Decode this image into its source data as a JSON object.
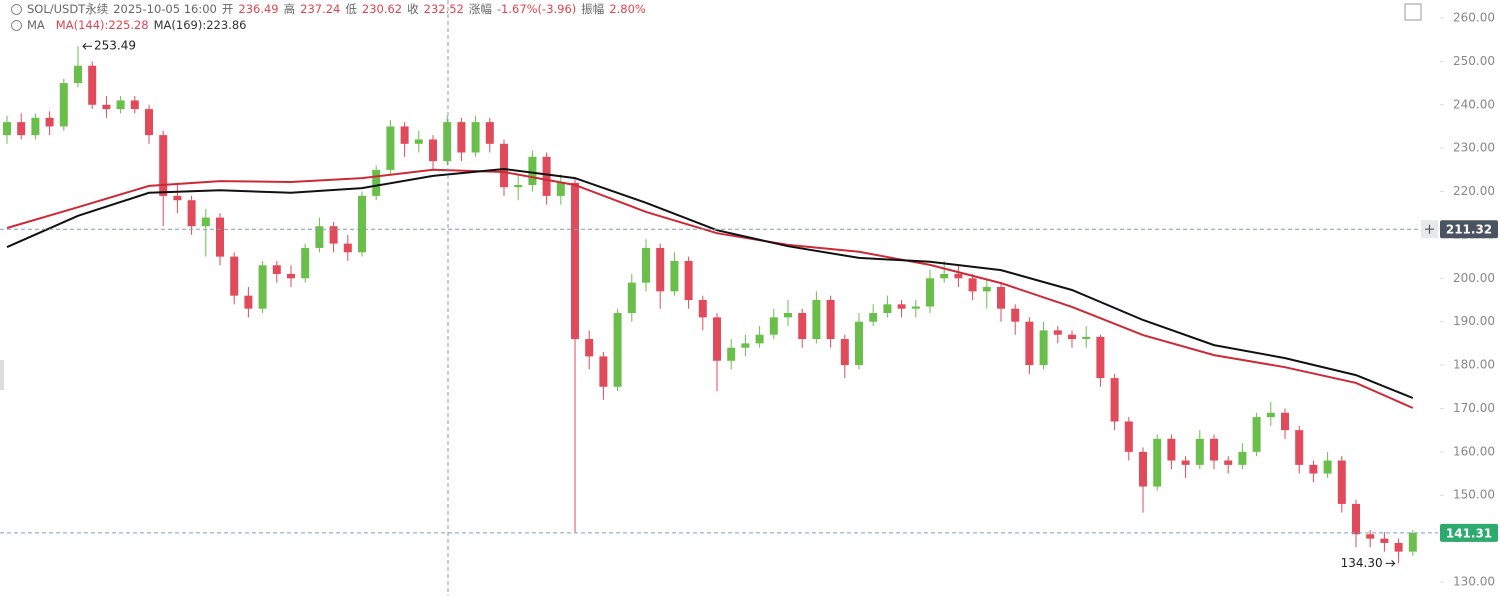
{
  "header": {
    "symbol": "SOL/USDT永续",
    "time": "2025-10-05 16:00",
    "open_label": "开",
    "open": "236.49",
    "high_label": "高",
    "high": "237.24",
    "low_label": "低",
    "low": "230.62",
    "close_label": "收",
    "close": "232.52",
    "change_label": "涨幅",
    "change": "-1.67%(-3.96)",
    "amplitude_label": "振幅",
    "amplitude": "2.80%",
    "ma_label": "MA"
  },
  "chart_data": {
    "type": "candlestick",
    "up_color": "#6abf4b",
    "down_color": "#e04a5a",
    "open": [
      233,
      236,
      233,
      237,
      235,
      245,
      249,
      240,
      239,
      241,
      239,
      233,
      219,
      218,
      212,
      214,
      205,
      196,
      193,
      203,
      201,
      200,
      207,
      212,
      208,
      206,
      219,
      225,
      235,
      231,
      232,
      227,
      236,
      229,
      236,
      231,
      221,
      221.5,
      228,
      219,
      222,
      186,
      182,
      175,
      192,
      199,
      207,
      197,
      204,
      195,
      191,
      181,
      184,
      185,
      187,
      191,
      192,
      186,
      195,
      186,
      180,
      190,
      192,
      194,
      193,
      193.5,
      200,
      201,
      200,
      197,
      198,
      193,
      190,
      180,
      188,
      187,
      186,
      186.5,
      177,
      167,
      160,
      152,
      163,
      158,
      157,
      163,
      158,
      157,
      160,
      168,
      169,
      165,
      157,
      155,
      158,
      148,
      141,
      140,
      139,
      137
    ],
    "high": [
      237.5,
      238,
      238,
      238.5,
      246,
      253.49,
      250,
      242,
      242,
      242,
      240,
      234,
      222,
      219,
      216,
      215,
      206,
      198,
      204,
      204,
      203,
      208,
      214,
      213,
      210,
      220,
      226,
      236.5,
      236,
      234,
      233,
      237.5,
      237,
      237.5,
      237,
      232,
      224,
      229.5,
      229,
      224,
      223,
      188,
      183,
      193,
      201,
      209,
      208,
      206,
      205,
      196,
      192,
      186,
      187,
      189,
      193,
      195,
      193,
      197,
      196,
      187,
      192,
      194,
      196,
      195,
      195,
      202,
      204,
      203,
      201,
      200,
      199,
      194,
      191,
      190,
      189,
      188,
      189,
      187,
      178,
      168,
      161,
      164,
      164,
      159,
      165,
      164,
      159,
      162,
      169,
      171.5,
      170,
      166,
      158,
      160,
      159,
      149,
      142,
      141.5,
      140,
      142
    ],
    "low": [
      231,
      232,
      232,
      233,
      234,
      244,
      239,
      237,
      238,
      238,
      231,
      212,
      215,
      210,
      205,
      203,
      194,
      191,
      192,
      199,
      198,
      199,
      206,
      206,
      204,
      205,
      218,
      224,
      228,
      229,
      225,
      226,
      227,
      228,
      229,
      219,
      218,
      220,
      217,
      217,
      141.5,
      179,
      172,
      174,
      190,
      197,
      193,
      196,
      193,
      188,
      174,
      179,
      182,
      184,
      186,
      189,
      184,
      185,
      184,
      177,
      179,
      189,
      191,
      191,
      191,
      192,
      199,
      198,
      195,
      193,
      190,
      187,
      178,
      179,
      185,
      184,
      184,
      175,
      165,
      158,
      146,
      151,
      156,
      154,
      156,
      156,
      155,
      156,
      159,
      166,
      163,
      155,
      153,
      154,
      146,
      138,
      138,
      137,
      134.3,
      136
    ],
    "close": [
      236,
      233,
      237,
      235,
      245,
      249,
      240,
      239,
      241,
      239,
      233,
      219,
      218,
      212,
      214,
      205,
      196,
      193,
      203,
      201,
      200,
      207,
      212,
      208,
      206,
      219,
      225,
      235,
      231,
      232,
      227,
      236,
      229,
      236,
      231,
      221,
      221.5,
      228,
      219,
      222,
      186,
      182,
      175,
      192,
      199,
      207,
      197,
      204,
      195,
      191,
      181,
      184,
      185,
      187,
      191,
      192,
      186,
      195,
      186,
      180,
      190,
      192,
      194,
      193,
      193.5,
      200,
      201,
      200,
      197,
      198,
      193,
      190,
      180,
      188,
      187,
      186,
      186.5,
      177,
      167,
      160,
      152,
      163,
      158,
      157,
      163,
      158,
      157,
      160,
      168,
      169,
      165,
      157,
      155,
      158,
      148,
      141,
      140,
      139,
      137,
      141.31
    ],
    "ma": [
      {
        "name": "MA(144):225.28",
        "color": "#cc2a36",
        "x": [
          0,
          5,
          10,
          15,
          20,
          25,
          30,
          35,
          40,
          45,
          50,
          55,
          60,
          65,
          70,
          75,
          80,
          85,
          90,
          95,
          99
        ],
        "values": [
          211.6,
          216.4,
          221.3,
          222.4,
          222.2,
          223.1,
          225.0,
          224.5,
          221.5,
          215.3,
          210.4,
          207.7,
          206.1,
          203.1,
          198.9,
          193.4,
          186.9,
          182.3,
          179.5,
          175.9,
          170.1
        ]
      },
      {
        "name": "MA(169):223.86",
        "color": "#111111",
        "x": [
          0,
          5,
          10,
          15,
          20,
          25,
          30,
          35,
          40,
          45,
          50,
          55,
          60,
          65,
          70,
          75,
          80,
          85,
          90,
          95,
          99
        ],
        "values": [
          207.2,
          214.4,
          219.7,
          220.3,
          219.7,
          220.8,
          223.6,
          225.2,
          223.1,
          217.4,
          211.1,
          207.4,
          204.7,
          203.8,
          201.9,
          197.3,
          190.4,
          184.6,
          181.6,
          177.7,
          172.4
        ]
      }
    ],
    "ylim": [
      130,
      260
    ],
    "yticks": [
      {
        "value": 130,
        "label": "130.00"
      },
      {
        "value": 140,
        "label": "140.00"
      },
      {
        "value": 150,
        "label": "150.00"
      },
      {
        "value": 160,
        "label": "160.00"
      },
      {
        "value": 170,
        "label": "170.00"
      },
      {
        "value": 180,
        "label": "180.00"
      },
      {
        "value": 190,
        "label": "190.00"
      },
      {
        "value": 200,
        "label": "200.00"
      },
      {
        "value": 210,
        "label": "210.00"
      },
      {
        "value": 220,
        "label": "220.00"
      },
      {
        "value": 230,
        "label": "230.00"
      },
      {
        "value": 240,
        "label": "240.00"
      },
      {
        "value": 250,
        "label": "250.00"
      },
      {
        "value": 260,
        "label": "260.00"
      }
    ],
    "crosshair_price": 211.32,
    "last_price": 141.31,
    "max_label": 253.49,
    "min_label": {
      "value": 134.3,
      "label": "134.30"
    }
  }
}
